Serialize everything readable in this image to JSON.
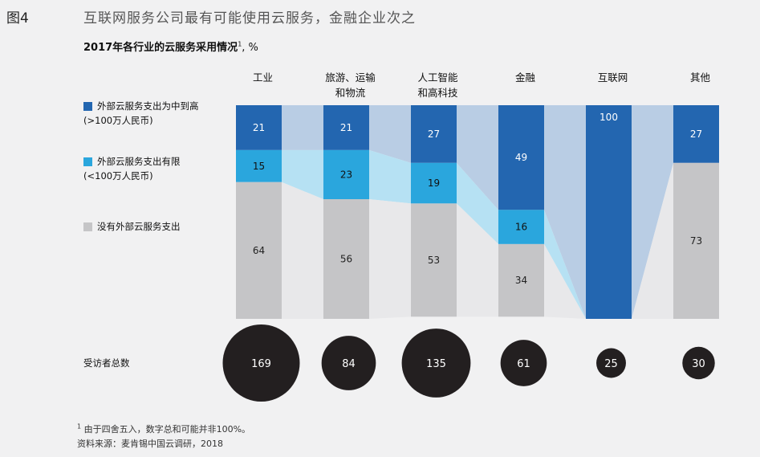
{
  "figure_label": "图4",
  "figure_title": "互联网服务公司最有可能使用云服务，金融企业次之",
  "chart_data": {
    "type": "bar",
    "stacked": true,
    "percent": true,
    "title": "2017年各行业的云服务采用情况",
    "title_sup": "1",
    "title_unit": ", %",
    "categories": [
      [
        "工业"
      ],
      [
        "旅游、运输",
        "和物流"
      ],
      [
        "人工智能",
        "和高科技"
      ],
      [
        "金融"
      ],
      [
        "互联网"
      ],
      [
        "其他"
      ]
    ],
    "series": [
      {
        "name": [
          "外部云服务支出为中到高",
          "(>100万人民币)"
        ],
        "color": "#2366b0",
        "label_color": "#ffffff",
        "values": [
          21,
          21,
          27,
          49,
          100,
          27
        ]
      },
      {
        "name": [
          "外部云服务支出有限",
          "(<100万人民币)"
        ],
        "color": "#2aa6dd",
        "label_color": "#111111",
        "values": [
          15,
          23,
          19,
          16,
          0,
          0
        ]
      },
      {
        "name": [
          "没有外部云服务支出"
        ],
        "color": "#c5c5c7",
        "label_color": "#222222",
        "values": [
          64,
          56,
          53,
          34,
          0,
          73
        ]
      }
    ],
    "connector_colors": [
      "#b9cde4",
      "#b6e1f3",
      "#e8e8ea"
    ],
    "respondents": {
      "label": "受访者总数",
      "values": [
        169,
        84,
        135,
        61,
        25,
        30
      ]
    }
  },
  "footnotes": {
    "note_mark": "1",
    "note_text": "由于四舍五入，数字总和可能并非100%。",
    "source": "资料来源：麦肯锡中国云调研，2018"
  }
}
